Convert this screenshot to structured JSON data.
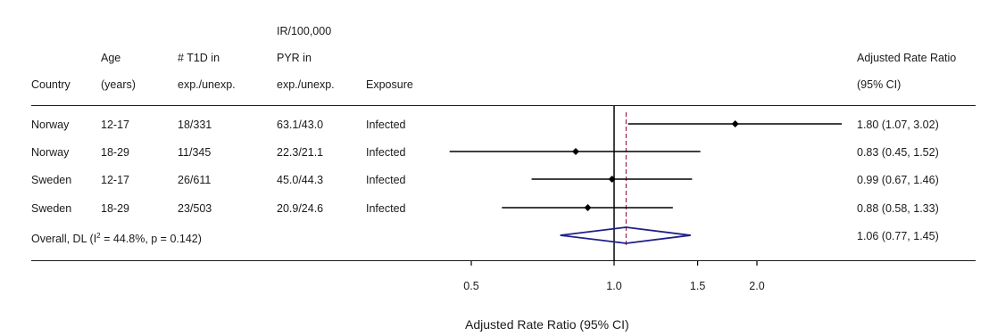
{
  "columns": {
    "country": [
      "Country"
    ],
    "age": [
      "Age",
      "(years)"
    ],
    "t1d": [
      "# T1D in",
      "exp./unexp."
    ],
    "ir": [
      "IR/100,000",
      "PYR in",
      "exp./unexp."
    ],
    "exposure": [
      "Exposure"
    ],
    "ratio": [
      "Adjusted Rate Ratio",
      "(95% CI)"
    ]
  },
  "rows": [
    {
      "country": "Norway",
      "age": "12-17",
      "t1d": "18/331",
      "ir": "63.1/43.0",
      "exposure": "Infected",
      "ci_text": "1.80 (1.07, 3.02)"
    },
    {
      "country": "Norway",
      "age": "18-29",
      "t1d": "11/345",
      "ir": "22.3/21.1",
      "exposure": "Infected",
      "ci_text": "0.83 (0.45, 1.52)"
    },
    {
      "country": "Sweden",
      "age": "12-17",
      "t1d": "26/611",
      "ir": "45.0/44.3",
      "exposure": "Infected",
      "ci_text": "0.99 (0.67, 1.46)"
    },
    {
      "country": "Sweden",
      "age": "18-29",
      "t1d": "23/503",
      "ir": "20.9/24.6",
      "exposure": "Infected",
      "ci_text": "0.88 (0.58, 1.33)"
    }
  ],
  "overall": {
    "label_prefix": "Overall, DL (I",
    "label_sup": "2",
    "label_suffix": " = 44.8%, p = 0.142)",
    "ci_text": "1.06 (0.77, 1.45)"
  },
  "colors": {
    "line": "#000000",
    "diamond": "#1f1f8a",
    "overall_line": "#a0264a"
  },
  "chart_data": {
    "type": "forest",
    "xlabel": "Adjusted Rate Ratio (95% CI)",
    "xscale": "log",
    "xticks": [
      0.5,
      1.0,
      1.5,
      2.0
    ],
    "xtick_labels": [
      "0.5",
      "1.0",
      "1.5",
      "2.0"
    ],
    "null_value": 1.0,
    "studies": [
      {
        "estimate": 1.8,
        "lower": 1.07,
        "upper": 3.02
      },
      {
        "estimate": 0.83,
        "lower": 0.45,
        "upper": 1.52
      },
      {
        "estimate": 0.99,
        "lower": 0.67,
        "upper": 1.46
      },
      {
        "estimate": 0.88,
        "lower": 0.58,
        "upper": 1.33
      }
    ],
    "overall": {
      "estimate": 1.06,
      "lower": 0.77,
      "upper": 1.45
    }
  }
}
